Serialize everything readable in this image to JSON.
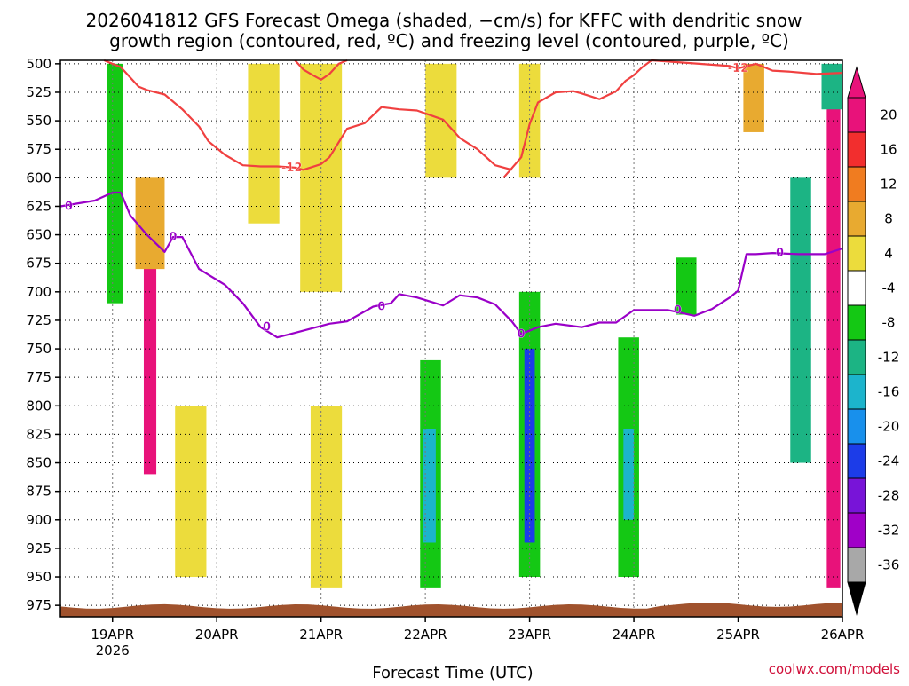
{
  "chart_data": {
    "type": "heatmap",
    "title_line1": "2026041812 GFS Forecast Omega (shaded, −cm/s) for KFFC with dendritic snow",
    "title_line2": "growth region (contoured, red, ºC) and freezing level (contoured, purple, ºC)",
    "xlabel": "Forecast Time (UTC)",
    "credit": "coolwx.com/models",
    "x_ticks": [
      {
        "label": "19APR",
        "sub": "2026",
        "day": 19
      },
      {
        "label": "20APR",
        "sub": "",
        "day": 20
      },
      {
        "label": "21APR",
        "sub": "",
        "day": 21
      },
      {
        "label": "22APR",
        "sub": "",
        "day": 22
      },
      {
        "label": "23APR",
        "sub": "",
        "day": 23
      },
      {
        "label": "24APR",
        "sub": "",
        "day": 24
      },
      {
        "label": "25APR",
        "sub": "",
        "day": 25
      },
      {
        "label": "26APR",
        "sub": "",
        "day": 26
      }
    ],
    "xlim_days": [
      18.5,
      26.0
    ],
    "ylim_hpa": [
      985,
      497
    ],
    "y_ticks": [
      "500",
      "525",
      "550",
      "575",
      "600",
      "625",
      "650",
      "675",
      "700",
      "725",
      "750",
      "775",
      "800",
      "825",
      "850",
      "875",
      "900",
      "925",
      "950",
      "975"
    ],
    "colorbar": {
      "tick_labels": [
        "20",
        "16",
        "12",
        "8",
        "4",
        "-4",
        "-8",
        "-12",
        "-16",
        "-20",
        "-24",
        "-28",
        "-32",
        "-36"
      ],
      "bins": [
        {
          "color": "#e8127a"
        },
        {
          "color": "#f22e2e"
        },
        {
          "color": "#f07c20"
        },
        {
          "color": "#e8aa30"
        },
        {
          "color": "#ecdc3c"
        },
        {
          "color": "#ffffff"
        },
        {
          "color": "#14c814"
        },
        {
          "color": "#1cb484"
        },
        {
          "color": "#1cb4cc"
        },
        {
          "color": "#1890ec"
        },
        {
          "color": "#1c3ce8"
        },
        {
          "color": "#7814d8"
        },
        {
          "color": "#a000c8"
        },
        {
          "color": "#a8a8a8"
        }
      ],
      "top_arrow_color": "#e8127a",
      "bottom_arrow_color": "#000000"
    },
    "series": [
      {
        "name": "freezing level (0 C)",
        "color": "#9a00c8",
        "label": "0",
        "label_days": [
          18.58,
          19.58,
          20.48,
          21.58,
          22.92,
          24.42,
          25.4
        ],
        "points": [
          [
            18.5,
            625
          ],
          [
            18.83,
            620
          ],
          [
            19.0,
            613
          ],
          [
            19.08,
            613
          ],
          [
            19.17,
            633
          ],
          [
            19.33,
            650
          ],
          [
            19.5,
            665
          ],
          [
            19.58,
            652
          ],
          [
            19.67,
            652
          ],
          [
            19.83,
            680
          ],
          [
            20.08,
            694
          ],
          [
            20.25,
            710
          ],
          [
            20.42,
            731
          ],
          [
            20.58,
            740
          ],
          [
            20.75,
            736
          ],
          [
            21.08,
            728
          ],
          [
            21.25,
            726
          ],
          [
            21.5,
            713
          ],
          [
            21.67,
            710
          ],
          [
            21.75,
            702
          ],
          [
            21.92,
            705
          ],
          [
            22.17,
            712
          ],
          [
            22.33,
            703
          ],
          [
            22.5,
            705
          ],
          [
            22.67,
            711
          ],
          [
            22.83,
            726
          ],
          [
            22.92,
            737
          ],
          [
            23.08,
            731
          ],
          [
            23.25,
            728
          ],
          [
            23.5,
            731
          ],
          [
            23.67,
            727
          ],
          [
            23.83,
            727
          ],
          [
            24.0,
            716
          ],
          [
            24.33,
            716
          ],
          [
            24.58,
            721
          ],
          [
            24.75,
            715
          ],
          [
            24.92,
            705
          ],
          [
            25.0,
            699
          ],
          [
            25.08,
            667
          ],
          [
            25.17,
            667
          ],
          [
            25.33,
            666
          ],
          [
            25.58,
            667
          ],
          [
            25.83,
            667
          ],
          [
            26.0,
            662
          ]
        ]
      },
      {
        "name": "dendritic growth region (-12 C), first segment",
        "color": "#f04040",
        "label": "-12",
        "label_days": [
          20.72
        ],
        "points": [
          [
            18.92,
            497
          ],
          [
            19.08,
            503
          ],
          [
            19.25,
            520
          ],
          [
            19.33,
            523
          ],
          [
            19.5,
            527
          ],
          [
            19.67,
            540
          ],
          [
            19.83,
            555
          ],
          [
            19.92,
            568
          ],
          [
            20.08,
            580
          ],
          [
            20.25,
            589
          ],
          [
            20.42,
            590
          ],
          [
            20.58,
            590
          ],
          [
            20.75,
            591
          ],
          [
            20.83,
            593
          ],
          [
            21.0,
            588
          ],
          [
            21.08,
            582
          ],
          [
            21.25,
            557
          ],
          [
            21.42,
            552
          ],
          [
            21.58,
            538
          ],
          [
            21.75,
            540
          ],
          [
            21.92,
            541
          ],
          [
            22.17,
            549
          ],
          [
            22.33,
            565
          ],
          [
            22.5,
            575
          ],
          [
            22.67,
            589
          ],
          [
            22.83,
            593
          ]
        ]
      },
      {
        "name": "dendritic growth region (-12 C), second segment",
        "color": "#f04040",
        "label": "-12",
        "label_days": [
          25.0
        ],
        "points": [
          [
            22.75,
            600
          ],
          [
            22.92,
            582
          ],
          [
            23.0,
            553
          ],
          [
            23.08,
            534
          ],
          [
            23.25,
            525
          ],
          [
            23.42,
            524
          ],
          [
            23.5,
            526
          ],
          [
            23.67,
            531
          ],
          [
            23.83,
            524
          ],
          [
            23.92,
            515
          ],
          [
            24.0,
            510
          ],
          [
            24.08,
            503
          ],
          [
            24.17,
            497
          ],
          [
            24.92,
            502
          ],
          [
            25.0,
            504
          ],
          [
            25.17,
            500
          ],
          [
            25.33,
            506
          ],
          [
            25.5,
            507
          ],
          [
            25.75,
            509
          ],
          [
            26.0,
            508
          ]
        ]
      },
      {
        "name": "dendritic growth region (-12 C), upper segment",
        "color": "#f04040",
        "label": "",
        "label_days": [],
        "points": [
          [
            20.75,
            497
          ],
          [
            20.83,
            505
          ],
          [
            20.92,
            510
          ],
          [
            21.0,
            514
          ],
          [
            21.08,
            509
          ],
          [
            21.17,
            500
          ],
          [
            21.25,
            497
          ]
        ]
      }
    ],
    "shading": [
      {
        "x": [
          19.3,
          19.42
        ],
        "p": [
          640,
          860
        ],
        "color": "#e8127a"
      },
      {
        "x": [
          19.22,
          19.5
        ],
        "p": [
          600,
          680
        ],
        "color": "#e8aa30"
      },
      {
        "x": [
          18.95,
          19.1
        ],
        "p": [
          500,
          710
        ],
        "color": "#14c814"
      },
      {
        "x": [
          20.3,
          20.6
        ],
        "p": [
          500,
          640
        ],
        "color": "#ecdc3c"
      },
      {
        "x": [
          20.8,
          21.2
        ],
        "p": [
          500,
          700
        ],
        "color": "#ecdc3c"
      },
      {
        "x": [
          19.6,
          19.9
        ],
        "p": [
          800,
          950
        ],
        "color": "#ecdc3c"
      },
      {
        "x": [
          20.9,
          21.2
        ],
        "p": [
          800,
          960
        ],
        "color": "#ecdc3c"
      },
      {
        "x": [
          21.95,
          22.15
        ],
        "p": [
          760,
          960
        ],
        "color": "#14c814"
      },
      {
        "x": [
          21.98,
          22.1
        ],
        "p": [
          820,
          920
        ],
        "color": "#1cb4cc"
      },
      {
        "x": [
          22.9,
          23.1
        ],
        "p": [
          700,
          950
        ],
        "color": "#14c814"
      },
      {
        "x": [
          22.95,
          23.05
        ],
        "p": [
          750,
          920
        ],
        "color": "#1c3ce8"
      },
      {
        "x": [
          23.85,
          24.05
        ],
        "p": [
          740,
          950
        ],
        "color": "#14c814"
      },
      {
        "x": [
          23.9,
          24.0
        ],
        "p": [
          820,
          900
        ],
        "color": "#1cb4cc"
      },
      {
        "x": [
          25.5,
          25.7
        ],
        "p": [
          600,
          850
        ],
        "color": "#1cb484"
      },
      {
        "x": [
          25.85,
          25.98
        ],
        "p": [
          520,
          960
        ],
        "color": "#e8127a"
      },
      {
        "x": [
          25.8,
          26.0
        ],
        "p": [
          500,
          540
        ],
        "color": "#1cb484"
      },
      {
        "x": [
          25.05,
          25.25
        ],
        "p": [
          500,
          560
        ],
        "color": "#e8aa30"
      },
      {
        "x": [
          22.0,
          22.3
        ],
        "p": [
          500,
          600
        ],
        "color": "#ecdc3c"
      },
      {
        "x": [
          22.9,
          23.1
        ],
        "p": [
          500,
          600
        ],
        "color": "#ecdc3c"
      },
      {
        "x": [
          24.4,
          24.6
        ],
        "p": [
          670,
          720
        ],
        "color": "#14c814"
      }
    ]
  }
}
